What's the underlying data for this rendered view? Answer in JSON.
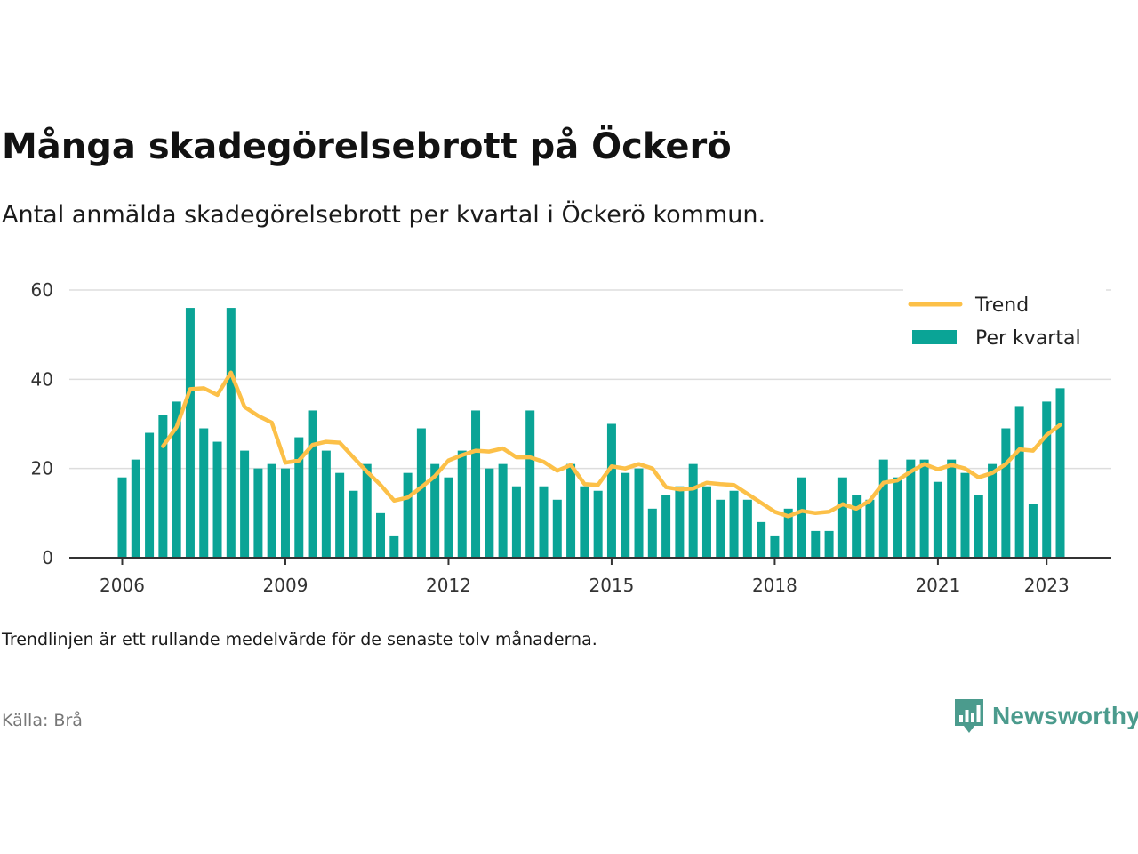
{
  "title": "Många skadegörelsebrott på Öckerö",
  "subtitle": "Antal anmälda skadegörelsebrott per kvartal i Öckerö kommun.",
  "footnote": "Trendlinjen är ett rullande medelvärde för de senaste tolv månaderna.",
  "source": "Källa: Brå",
  "brand": {
    "name": "Newsworthy",
    "icon": "newsworthy-logo-icon",
    "color": "#4b9b8d"
  },
  "chart_data": {
    "type": "bar",
    "title": "",
    "xlabel": "",
    "ylabel": "",
    "ylim": [
      0,
      60
    ],
    "yticks": [
      0,
      20,
      40,
      60
    ],
    "xticks": [
      "2006",
      "2009",
      "2012",
      "2015",
      "2018",
      "2021",
      "2023"
    ],
    "grid": true,
    "legend_position": "top-right",
    "colors": {
      "bars": "#0aa496",
      "trend": "#fcc048",
      "grid": "#dddddd",
      "axis": "#333333"
    },
    "categories": [
      "2006 Q1",
      "2006 Q2",
      "2006 Q3",
      "2006 Q4",
      "2007 Q1",
      "2007 Q2",
      "2007 Q3",
      "2007 Q4",
      "2008 Q1",
      "2008 Q2",
      "2008 Q3",
      "2008 Q4",
      "2009 Q1",
      "2009 Q2",
      "2009 Q3",
      "2009 Q4",
      "2010 Q1",
      "2010 Q2",
      "2010 Q3",
      "2010 Q4",
      "2011 Q1",
      "2011 Q2",
      "2011 Q3",
      "2011 Q4",
      "2012 Q1",
      "2012 Q2",
      "2012 Q3",
      "2012 Q4",
      "2013 Q1",
      "2013 Q2",
      "2013 Q3",
      "2013 Q4",
      "2014 Q1",
      "2014 Q2",
      "2014 Q3",
      "2014 Q4",
      "2015 Q1",
      "2015 Q2",
      "2015 Q3",
      "2015 Q4",
      "2016 Q1",
      "2016 Q2",
      "2016 Q3",
      "2016 Q4",
      "2017 Q1",
      "2017 Q2",
      "2017 Q3",
      "2017 Q4",
      "2018 Q1",
      "2018 Q2",
      "2018 Q3",
      "2018 Q4",
      "2019 Q1",
      "2019 Q2",
      "2019 Q3",
      "2019 Q4",
      "2020 Q1",
      "2020 Q2",
      "2020 Q3",
      "2020 Q4",
      "2021 Q1",
      "2021 Q2",
      "2021 Q3",
      "2021 Q4",
      "2022 Q1",
      "2022 Q2",
      "2022 Q3",
      "2022 Q4",
      "2023 Q1",
      "2023 Q2"
    ],
    "series": [
      {
        "name": "Per kvartal",
        "type": "bar",
        "values": [
          18,
          22,
          28,
          32,
          35,
          56,
          29,
          26,
          56,
          24,
          20,
          21,
          20,
          27,
          33,
          24,
          19,
          15,
          21,
          10,
          5,
          19,
          29,
          21,
          18,
          24,
          33,
          20,
          21,
          16,
          33,
          16,
          13,
          21,
          16,
          15,
          30,
          19,
          20,
          11,
          14,
          16,
          21,
          16,
          13,
          15,
          13,
          8,
          5,
          11,
          18,
          6,
          6,
          18,
          14,
          13,
          22,
          18,
          22,
          22,
          17,
          22,
          19,
          14,
          21,
          29,
          34,
          12,
          35,
          38
        ]
      },
      {
        "name": "Trend",
        "type": "line",
        "values": [
          null,
          null,
          null,
          25,
          29.3,
          37.8,
          38,
          36.5,
          41.5,
          33.8,
          31.8,
          30.3,
          21.3,
          21.8,
          25.3,
          26,
          25.8,
          22.5,
          19.3,
          16.3,
          12.8,
          13.5,
          15.8,
          18.3,
          21.8,
          23,
          24,
          23.8,
          24.5,
          22.5,
          22.5,
          21.5,
          19.5,
          20.8,
          16.5,
          16.3,
          20.5,
          20,
          21,
          20,
          15.8,
          15.3,
          15.5,
          16.8,
          16.5,
          16.3,
          14.3,
          12.3,
          10.3,
          9.3,
          10.5,
          10,
          10.3,
          12,
          11,
          12.8,
          16.8,
          17.3,
          19.3,
          21,
          19.8,
          20.8,
          20,
          18,
          19,
          21,
          24.3,
          24,
          27.5,
          29.8
        ]
      }
    ]
  }
}
